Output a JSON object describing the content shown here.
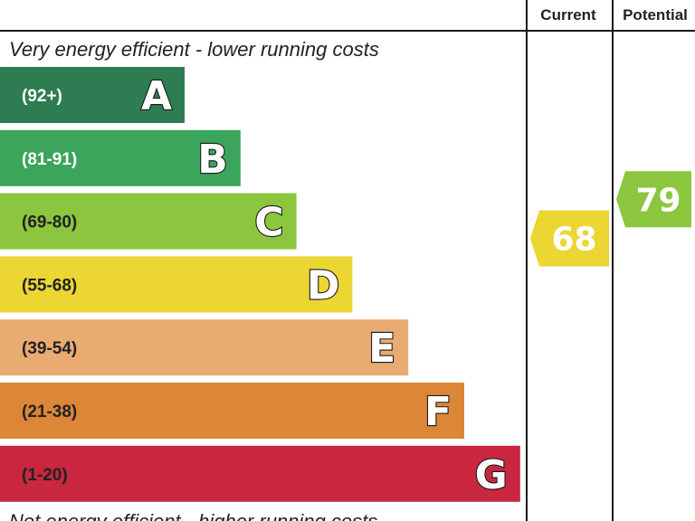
{
  "chart_data": {
    "type": "bar",
    "headers": {
      "current": "Current",
      "potential": "Potential"
    },
    "top_caption": "Very energy efficient - lower running costs",
    "bottom_caption": "Not energy efficient - higher running costs",
    "bands": [
      {
        "letter": "A",
        "range": "(92+)",
        "min": 92,
        "max": 100,
        "color": "#2e7d52",
        "range_color": "#ffffff"
      },
      {
        "letter": "B",
        "range": "(81-91)",
        "min": 81,
        "max": 91,
        "color": "#3ba55c",
        "range_color": "#ffffff"
      },
      {
        "letter": "C",
        "range": "(69-80)",
        "min": 69,
        "max": 80,
        "color": "#8cc63f",
        "range_color": "#222222"
      },
      {
        "letter": "D",
        "range": "(55-68)",
        "min": 55,
        "max": 68,
        "color": "#ecd634",
        "range_color": "#222222"
      },
      {
        "letter": "E",
        "range": "(39-54)",
        "min": 39,
        "max": 54,
        "color": "#e9ab72",
        "range_color": "#222222"
      },
      {
        "letter": "F",
        "range": "(21-38)",
        "min": 21,
        "max": 38,
        "color": "#dc8638",
        "range_color": "#222222"
      },
      {
        "letter": "G",
        "range": "(1-20)",
        "min": 1,
        "max": 20,
        "color": "#c8273f",
        "range_color": "#222222"
      }
    ],
    "ratings": {
      "current": {
        "value": 68,
        "band": "D",
        "color": "#ecd634"
      },
      "potential": {
        "value": 79,
        "band": "C",
        "color": "#8cc63f"
      }
    }
  }
}
